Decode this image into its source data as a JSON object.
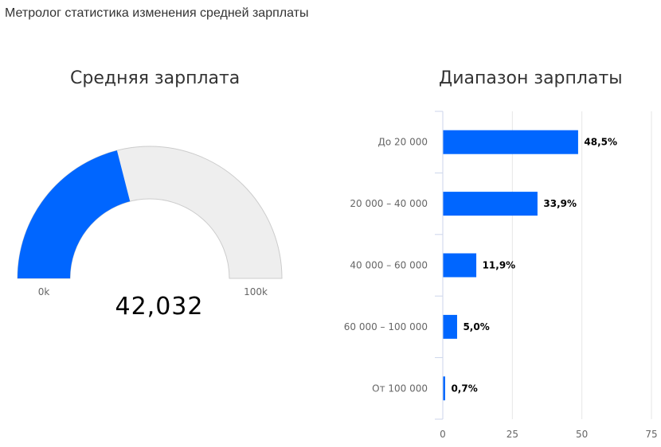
{
  "page": {
    "title": "Метролог статистика изменения средней зарплаты"
  },
  "chart_data": [
    {
      "type": "gauge",
      "title": "Средняя зарплата",
      "value": 42032,
      "value_label": "42,032",
      "min": 0,
      "max": 100000,
      "min_label": "0k",
      "max_label": "100k",
      "colors": {
        "fill": "#0066ff",
        "track": "#eeeeee",
        "border": "#cccccc"
      }
    },
    {
      "type": "bar",
      "orientation": "horizontal",
      "title": "Диапазон зарплаты",
      "categories": [
        "До 20 000",
        "20 000 – 40 000",
        "40 000 – 60 000",
        "60 000 – 100 000",
        "От 100 000"
      ],
      "values": [
        48.5,
        33.9,
        11.9,
        5.0,
        0.7
      ],
      "data_labels": [
        "48,5%",
        "33,9%",
        "11,9%",
        "5,0%",
        "0,7%"
      ],
      "xlim": [
        0,
        75
      ],
      "x_ticks": [
        0,
        25,
        50,
        75
      ],
      "grid": true,
      "colors": {
        "bar": "#0066ff",
        "grid": "#e6e6e6",
        "axis": "#ccd6eb"
      }
    }
  ]
}
